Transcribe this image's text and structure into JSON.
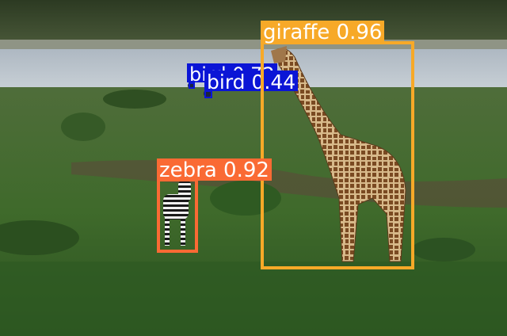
{
  "detections": [
    {
      "id": "giraffe",
      "label": "giraffe 0.96",
      "color": "#f7a928"
    },
    {
      "id": "zebra",
      "label": "zebra 0.92",
      "color": "#fa6a34"
    },
    {
      "id": "bird-1",
      "label": "bird 0.72",
      "color": "#0b15d6"
    },
    {
      "id": "bird-2",
      "label": "bird 0.44",
      "color": "#0b15d6"
    }
  ]
}
